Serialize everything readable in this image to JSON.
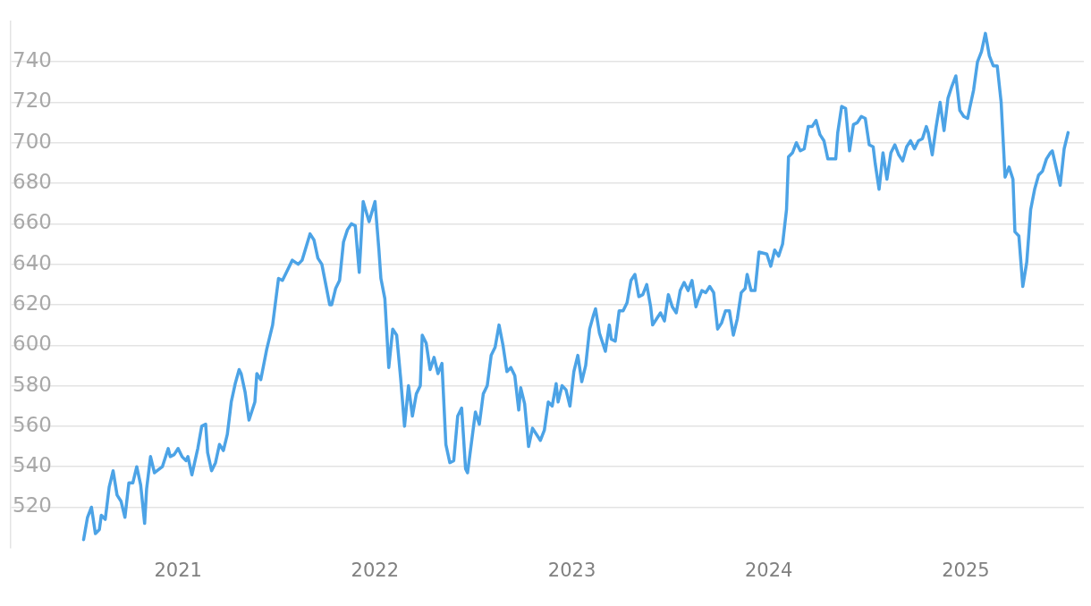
{
  "chart_data": {
    "type": "line",
    "color": "#4ca3e6",
    "marker": "none",
    "grid": "y",
    "xlim": [
      2020.15,
      2025.6
    ],
    "xticks": [
      2021,
      2022,
      2023,
      2024,
      2025
    ],
    "ylim": [
      500,
      760
    ],
    "yticks": [
      520,
      540,
      560,
      580,
      600,
      620,
      640,
      660,
      680,
      700,
      720,
      740
    ],
    "x": [
      2020.52,
      2020.54,
      2020.56,
      2020.58,
      2020.6,
      2020.61,
      2020.63,
      2020.65,
      2020.67,
      2020.69,
      2020.71,
      2020.73,
      2020.75,
      2020.77,
      2020.79,
      2020.81,
      2020.83,
      2020.84,
      2020.86,
      2020.88,
      2020.92,
      2020.95,
      2020.96,
      2020.98,
      2021.0,
      2021.02,
      2021.04,
      2021.05,
      2021.07,
      2021.1,
      2021.12,
      2021.14,
      2021.15,
      2021.17,
      2021.19,
      2021.21,
      2021.23,
      2021.25,
      2021.27,
      2021.29,
      2021.31,
      2021.32,
      2021.34,
      2021.36,
      2021.39,
      2021.4,
      2021.42,
      2021.45,
      2021.48,
      2021.51,
      2021.53,
      2021.55,
      2021.58,
      2021.61,
      2021.63,
      2021.67,
      2021.69,
      2021.71,
      2021.73,
      2021.77,
      2021.78,
      2021.8,
      2021.82,
      2021.84,
      2021.86,
      2021.88,
      2021.9,
      2021.92,
      2021.94,
      2021.97,
      2022.0,
      2022.02,
      2022.03,
      2022.05,
      2022.07,
      2022.09,
      2022.11,
      2022.13,
      2022.15,
      2022.17,
      2022.19,
      2022.21,
      2022.23,
      2022.24,
      2022.26,
      2022.28,
      2022.3,
      2022.32,
      2022.34,
      2022.36,
      2022.38,
      2022.4,
      2022.42,
      2022.44,
      2022.46,
      2022.47,
      2022.49,
      2022.51,
      2022.53,
      2022.55,
      2022.57,
      2022.59,
      2022.61,
      2022.63,
      2022.65,
      2022.67,
      2022.69,
      2022.71,
      2022.73,
      2022.74,
      2022.76,
      2022.78,
      2022.8,
      2022.84,
      2022.86,
      2022.88,
      2022.9,
      2022.92,
      2022.93,
      2022.95,
      2022.97,
      2022.99,
      2023.01,
      2023.03,
      2023.05,
      2023.07,
      2023.09,
      2023.11,
      2023.12,
      2023.14,
      2023.17,
      2023.19,
      2023.2,
      2023.22,
      2023.24,
      2023.26,
      2023.28,
      2023.3,
      2023.32,
      2023.34,
      2023.36,
      2023.38,
      2023.4,
      2023.41,
      2023.43,
      2023.45,
      2023.47,
      2023.49,
      2023.51,
      2023.53,
      2023.55,
      2023.57,
      2023.59,
      2023.61,
      2023.63,
      2023.64,
      2023.66,
      2023.68,
      2023.7,
      2023.72,
      2023.74,
      2023.76,
      2023.78,
      2023.8,
      2023.82,
      2023.84,
      2023.86,
      2023.88,
      2023.89,
      2023.91,
      2023.93,
      2023.95,
      2023.99,
      2024.01,
      2024.03,
      2024.05,
      2024.07,
      2024.09,
      2024.1,
      2024.12,
      2024.14,
      2024.16,
      2024.18,
      2024.2,
      2024.22,
      2024.24,
      2024.26,
      2024.28,
      2024.3,
      2024.34,
      2024.35,
      2024.37,
      2024.39,
      2024.41,
      2024.43,
      2024.45,
      2024.47,
      2024.49,
      2024.51,
      2024.53,
      2024.54,
      2024.56,
      2024.58,
      2024.6,
      2024.62,
      2024.64,
      2024.66,
      2024.68,
      2024.7,
      2024.72,
      2024.74,
      2024.76,
      2024.78,
      2024.8,
      2024.81,
      2024.83,
      2024.85,
      2024.87,
      2024.89,
      2024.91,
      2024.93,
      2024.95,
      2024.97,
      2024.99,
      2025.01,
      2025.02,
      2025.04,
      2025.06,
      2025.08,
      2025.1,
      2025.12,
      2025.14,
      2025.16,
      2025.18,
      2025.2,
      2025.22,
      2025.24,
      2025.25,
      2025.27,
      2025.29,
      2025.31,
      2025.33,
      2025.35,
      2025.37,
      2025.39,
      2025.41,
      2025.43,
      2025.44,
      2025.48,
      2025.5,
      2025.52
    ],
    "values": [
      504,
      515,
      520,
      507,
      509,
      516,
      514,
      530,
      538,
      526,
      523,
      515,
      532,
      532,
      540,
      531,
      512,
      529,
      545,
      537,
      540,
      549,
      545,
      546,
      549,
      545,
      543,
      545,
      536,
      549,
      560,
      561,
      547,
      538,
      542,
      551,
      548,
      556,
      572,
      581,
      588,
      586,
      577,
      563,
      572,
      586,
      583,
      598,
      610,
      633,
      632,
      636,
      642,
      640,
      642,
      655,
      652,
      643,
      640,
      620,
      620,
      628,
      632,
      651,
      657,
      660,
      659,
      636,
      671,
      661,
      671,
      647,
      633,
      623,
      589,
      608,
      605,
      584,
      560,
      580,
      565,
      576,
      580,
      605,
      601,
      588,
      594,
      586,
      591,
      551,
      542,
      543,
      565,
      569,
      539,
      537,
      552,
      567,
      561,
      576,
      580,
      595,
      599,
      610,
      600,
      587,
      589,
      585,
      568,
      579,
      571,
      550,
      559,
      553,
      558,
      572,
      570,
      581,
      572,
      580,
      578,
      570,
      587,
      595,
      582,
      590,
      608,
      615,
      618,
      606,
      597,
      610,
      603,
      602,
      617,
      617,
      621,
      632,
      635,
      624,
      625,
      630,
      619,
      610,
      613,
      616,
      612,
      625,
      619,
      616,
      627,
      631,
      627,
      632,
      619,
      622,
      627,
      626,
      629,
      626,
      608,
      611,
      617,
      617,
      605,
      613,
      626,
      628,
      635,
      627,
      627,
      646,
      645,
      639,
      647,
      644,
      650,
      667,
      693,
      695,
      700,
      696,
      697,
      708,
      708,
      711,
      704,
      701,
      692,
      692,
      705,
      718,
      717,
      696,
      709,
      710,
      713,
      712,
      699,
      698,
      690,
      677,
      695,
      682,
      695,
      699,
      694,
      691,
      698,
      701,
      697,
      701,
      702,
      708,
      705,
      694,
      708,
      720,
      706,
      722,
      728,
      733,
      716,
      713,
      712,
      717,
      726,
      740,
      745,
      754,
      743,
      738,
      738,
      720,
      683,
      688,
      682,
      656,
      654,
      629,
      641,
      667,
      677,
      684,
      686,
      692,
      695,
      696,
      679,
      697,
      705
    ]
  }
}
